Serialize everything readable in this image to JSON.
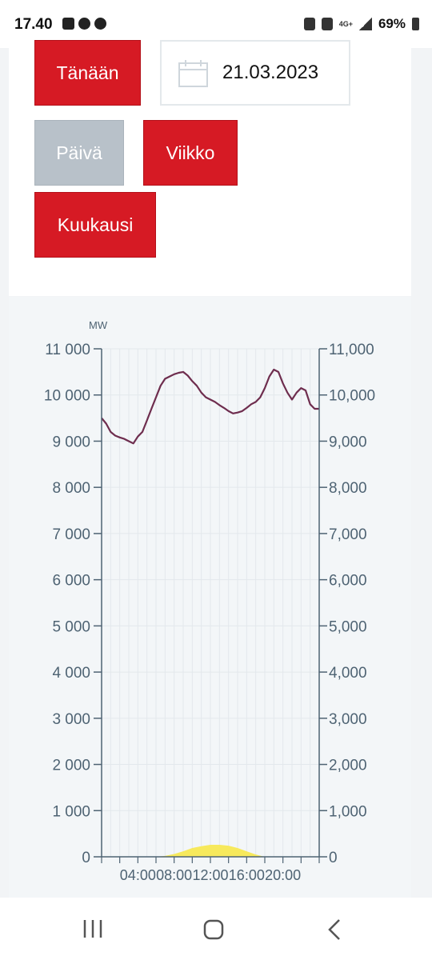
{
  "status_bar": {
    "time": "17.40",
    "network": "4G+",
    "battery": "69%"
  },
  "controls": {
    "today_label": "Tänään",
    "date_value": "21.03.2023",
    "day_label": "Päivä",
    "week_label": "Viikko",
    "month_label": "Kuukausi"
  },
  "chart_data": {
    "type": "line",
    "unit_label": "MW",
    "left_ticks": [
      "0",
      "1 000",
      "2 000",
      "3 000",
      "4 000",
      "5 000",
      "6 000",
      "7 000",
      "8 000",
      "9 000",
      "10 000",
      "11 000"
    ],
    "right_ticks": [
      "0",
      "1,000",
      "2,000",
      "3,000",
      "4,000",
      "5,000",
      "6,000",
      "7,000",
      "8,000",
      "9,000",
      "10,000",
      "11,000"
    ],
    "ylim": [
      0,
      11000
    ],
    "xlim": [
      0,
      24
    ],
    "x_ticks": [
      "04:00",
      "08:00",
      "12:00",
      "16:00",
      "20:00"
    ],
    "grid": true,
    "colors": {
      "consumption": "#6e2d4e",
      "solar": "#f7e95c",
      "axis": "#4e6373",
      "grid": "#e3e8ec"
    },
    "series": [
      {
        "id": "consumption",
        "x": [
          0,
          0.5,
          1,
          1.5,
          2,
          2.5,
          3,
          3.5,
          4,
          4.5,
          5,
          5.5,
          6,
          6.5,
          7,
          7.5,
          8,
          8.5,
          9,
          9.5,
          10,
          10.5,
          11,
          11.5,
          12,
          12.5,
          13,
          13.5,
          14,
          14.5,
          15,
          15.5,
          16,
          16.5,
          17,
          17.5,
          18,
          18.5,
          19,
          19.5,
          20,
          20.5,
          21,
          21.5,
          22,
          22.5,
          23,
          23.5,
          24
        ],
        "values": [
          9500,
          9380,
          9200,
          9120,
          9080,
          9050,
          9000,
          8950,
          9100,
          9200,
          9450,
          9700,
          9950,
          10200,
          10350,
          10400,
          10450,
          10480,
          10500,
          10420,
          10300,
          10200,
          10050,
          9950,
          9900,
          9850,
          9780,
          9720,
          9650,
          9600,
          9620,
          9650,
          9720,
          9800,
          9850,
          9950,
          10150,
          10400,
          10550,
          10500,
          10250,
          10050,
          9900,
          10050,
          10150,
          10100,
          9800,
          9700,
          9700
        ]
      },
      {
        "id": "solar",
        "x": [
          6,
          7,
          8,
          9,
          10,
          11,
          12,
          13,
          14,
          15,
          16,
          17,
          18
        ],
        "values": [
          0,
          20,
          60,
          120,
          190,
          230,
          260,
          260,
          240,
          190,
          120,
          50,
          0
        ]
      }
    ]
  }
}
